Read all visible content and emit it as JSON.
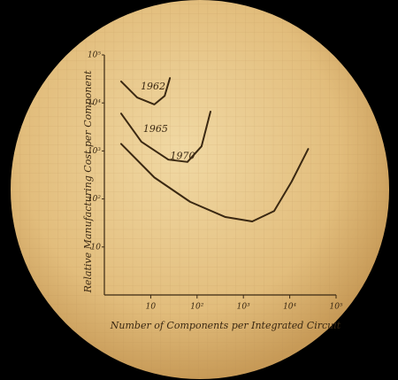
{
  "chart_data": {
    "type": "line",
    "x_label": "Number of Components per Integrated Circuit",
    "y_label": "Relative Manufacturing Cost per Component",
    "xscale": "log",
    "yscale": "log",
    "xlim": [
      1,
      100000
    ],
    "ylim": [
      1,
      100000
    ],
    "xticks": [
      10,
      {
        "value": 100,
        "label": "10²"
      },
      {
        "value": 1000,
        "label": "10³"
      },
      {
        "value": 10000,
        "label": "10⁴"
      },
      {
        "value": 100000,
        "label": "10⁵"
      }
    ],
    "yticks": [
      10,
      {
        "value": 100,
        "label": "10²"
      },
      {
        "value": 1000,
        "label": "10³"
      },
      {
        "value": 10000,
        "label": "10⁴"
      },
      {
        "value": 100000,
        "label": "10⁵"
      }
    ],
    "series": [
      {
        "name": "1962",
        "color": "#3a2812",
        "x": [
          2.3,
          5.1,
          12,
          20,
          26
        ],
        "values": [
          28000,
          13000,
          9300,
          14000,
          33000
        ]
      },
      {
        "name": "1965",
        "color": "#3a2812",
        "x": [
          2.3,
          6.3,
          24,
          62,
          125,
          195
        ],
        "values": [
          6000,
          1550,
          660,
          590,
          1250,
          6600
        ]
      },
      {
        "name": "1970",
        "color": "#3a2812",
        "x": [
          2.3,
          12,
          71,
          410,
          1550,
          4600,
          11000,
          25000
        ],
        "values": [
          1400,
          280,
          87,
          42,
          34,
          56,
          230,
          1100
        ]
      }
    ]
  }
}
